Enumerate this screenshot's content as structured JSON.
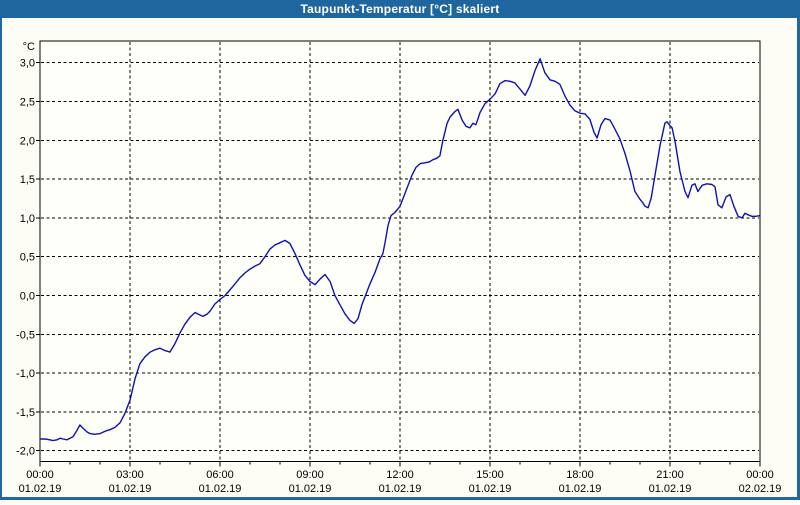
{
  "window": {
    "title": "Taupunkt-Temperatur [°C] skaliert"
  },
  "colors": {
    "titlebar_bg": "#20669e",
    "titlebar_text": "#ffffff",
    "window_border": "#24679f",
    "body_bg": "#fdfdf5",
    "plot_bg": "#fffffa",
    "grid": "#000000",
    "axis": "#000000",
    "line": "#1111b3",
    "label": "#000000"
  },
  "chart_data": {
    "type": "line",
    "title": "Taupunkt-Temperatur [°C] skaliert",
    "xlabel": "",
    "ylabel": "°C",
    "grid": "dashed",
    "legend": "none",
    "ylim": [
      -2.14,
      3.28
    ],
    "y_axis": {
      "unit_label": "°C",
      "min": -2.0,
      "max": 3.0,
      "tick_step": 0.5,
      "ticks": [
        {
          "value": 3.0,
          "label": "3,0"
        },
        {
          "value": 2.5,
          "label": "2,5"
        },
        {
          "value": 2.0,
          "label": "2,0"
        },
        {
          "value": 1.5,
          "label": "1,5"
        },
        {
          "value": 1.0,
          "label": "1,0"
        },
        {
          "value": 0.5,
          "label": "0,5"
        },
        {
          "value": 0.0,
          "label": "0,0"
        },
        {
          "value": -0.5,
          "label": "-0,5"
        },
        {
          "value": -1.0,
          "label": "-1,0"
        },
        {
          "value": -1.5,
          "label": "-1,5"
        },
        {
          "value": -2.0,
          "label": "-2,0"
        }
      ]
    },
    "x_axis": {
      "range_hours": [
        0,
        24
      ],
      "major_tick_hours": 3,
      "minor_tick_hours": 1,
      "ticks": [
        {
          "hour": 0,
          "time": "00:00",
          "date": "01.02.19"
        },
        {
          "hour": 3,
          "time": "03:00",
          "date": "01.02.19"
        },
        {
          "hour": 6,
          "time": "06:00",
          "date": "01.02.19"
        },
        {
          "hour": 9,
          "time": "09:00",
          "date": "01.02.19"
        },
        {
          "hour": 12,
          "time": "12:00",
          "date": "01.02.19"
        },
        {
          "hour": 15,
          "time": "15:00",
          "date": "01.02.19"
        },
        {
          "hour": 18,
          "time": "18:00",
          "date": "01.02.19"
        },
        {
          "hour": 21,
          "time": "21:00",
          "date": "01.02.19"
        },
        {
          "hour": 24,
          "time": "00:00",
          "date": "02.02.19"
        }
      ]
    },
    "series": [
      {
        "name": "Taupunkt-Temperatur skaliert",
        "color": "#1111b3",
        "points": [
          [
            0,
            -1.85
          ],
          [
            0.17,
            -1.85
          ],
          [
            0.33,
            -1.86
          ],
          [
            0.43,
            -1.87
          ],
          [
            0.57,
            -1.86
          ],
          [
            0.67,
            -1.84
          ],
          [
            0.77,
            -1.85
          ],
          [
            0.9,
            -1.86
          ],
          [
            1,
            -1.84
          ],
          [
            1.1,
            -1.82
          ],
          [
            1.23,
            -1.74
          ],
          [
            1.33,
            -1.67
          ],
          [
            1.43,
            -1.71
          ],
          [
            1.57,
            -1.76
          ],
          [
            1.67,
            -1.78
          ],
          [
            1.83,
            -1.79
          ],
          [
            2,
            -1.78
          ],
          [
            2.17,
            -1.75
          ],
          [
            2.33,
            -1.73
          ],
          [
            2.5,
            -1.7
          ],
          [
            2.67,
            -1.64
          ],
          [
            2.83,
            -1.52
          ],
          [
            3,
            -1.35
          ],
          [
            3.17,
            -1.07
          ],
          [
            3.33,
            -0.88
          ],
          [
            3.5,
            -0.79
          ],
          [
            3.67,
            -0.73
          ],
          [
            3.83,
            -0.7
          ],
          [
            4,
            -0.68
          ],
          [
            4.17,
            -0.71
          ],
          [
            4.33,
            -0.73
          ],
          [
            4.5,
            -0.62
          ],
          [
            4.67,
            -0.48
          ],
          [
            4.83,
            -0.37
          ],
          [
            5,
            -0.28
          ],
          [
            5.17,
            -0.22
          ],
          [
            5.27,
            -0.24
          ],
          [
            5.43,
            -0.27
          ],
          [
            5.57,
            -0.24
          ],
          [
            5.67,
            -0.2
          ],
          [
            5.83,
            -0.11
          ],
          [
            6,
            -0.05
          ],
          [
            6.17,
            0
          ],
          [
            6.33,
            0.07
          ],
          [
            6.5,
            0.15
          ],
          [
            6.67,
            0.23
          ],
          [
            6.83,
            0.29
          ],
          [
            7,
            0.34
          ],
          [
            7.17,
            0.38
          ],
          [
            7.33,
            0.41
          ],
          [
            7.5,
            0.5
          ],
          [
            7.67,
            0.6
          ],
          [
            7.83,
            0.65
          ],
          [
            8,
            0.68
          ],
          [
            8.17,
            0.71
          ],
          [
            8.33,
            0.67
          ],
          [
            8.5,
            0.54
          ],
          [
            8.67,
            0.39
          ],
          [
            8.83,
            0.26
          ],
          [
            9,
            0.18
          ],
          [
            9.17,
            0.14
          ],
          [
            9.33,
            0.21
          ],
          [
            9.5,
            0.27
          ],
          [
            9.67,
            0.18
          ],
          [
            9.83,
            0
          ],
          [
            10,
            -0.12
          ],
          [
            10.17,
            -0.24
          ],
          [
            10.33,
            -0.32
          ],
          [
            10.47,
            -0.36
          ],
          [
            10.6,
            -0.3
          ],
          [
            10.73,
            -0.12
          ],
          [
            10.87,
            0.02
          ],
          [
            11,
            0.15
          ],
          [
            11.17,
            0.3
          ],
          [
            11.33,
            0.47
          ],
          [
            11.43,
            0.54
          ],
          [
            11.5,
            0.68
          ],
          [
            11.6,
            0.9
          ],
          [
            11.7,
            1.03
          ],
          [
            11.83,
            1.07
          ],
          [
            12,
            1.15
          ],
          [
            12.13,
            1.28
          ],
          [
            12.27,
            1.42
          ],
          [
            12.4,
            1.55
          ],
          [
            12.53,
            1.65
          ],
          [
            12.67,
            1.7
          ],
          [
            12.83,
            1.71
          ],
          [
            12.97,
            1.72
          ],
          [
            13.1,
            1.75
          ],
          [
            13.23,
            1.77
          ],
          [
            13.33,
            1.8
          ],
          [
            13.43,
            2
          ],
          [
            13.57,
            2.22
          ],
          [
            13.67,
            2.3
          ],
          [
            13.83,
            2.37
          ],
          [
            13.93,
            2.4
          ],
          [
            14.07,
            2.26
          ],
          [
            14.2,
            2.18
          ],
          [
            14.33,
            2.16
          ],
          [
            14.43,
            2.22
          ],
          [
            14.53,
            2.2
          ],
          [
            14.67,
            2.36
          ],
          [
            14.83,
            2.47
          ],
          [
            15,
            2.53
          ],
          [
            15.17,
            2.6
          ],
          [
            15.33,
            2.73
          ],
          [
            15.5,
            2.77
          ],
          [
            15.67,
            2.76
          ],
          [
            15.83,
            2.74
          ],
          [
            16,
            2.66
          ],
          [
            16.17,
            2.58
          ],
          [
            16.33,
            2.7
          ],
          [
            16.5,
            2.9
          ],
          [
            16.67,
            3.05
          ],
          [
            16.83,
            2.87
          ],
          [
            17,
            2.78
          ],
          [
            17.17,
            2.76
          ],
          [
            17.33,
            2.72
          ],
          [
            17.5,
            2.57
          ],
          [
            17.67,
            2.45
          ],
          [
            17.83,
            2.38
          ],
          [
            18,
            2.35
          ],
          [
            18.17,
            2.34
          ],
          [
            18.33,
            2.27
          ],
          [
            18.47,
            2.1
          ],
          [
            18.57,
            2.03
          ],
          [
            18.7,
            2.2
          ],
          [
            18.83,
            2.28
          ],
          [
            19,
            2.26
          ],
          [
            19.17,
            2.14
          ],
          [
            19.33,
            2.02
          ],
          [
            19.5,
            1.83
          ],
          [
            19.67,
            1.6
          ],
          [
            19.83,
            1.34
          ],
          [
            20,
            1.24
          ],
          [
            20.1,
            1.19
          ],
          [
            20.17,
            1.15
          ],
          [
            20.27,
            1.13
          ],
          [
            20.37,
            1.25
          ],
          [
            20.5,
            1.55
          ],
          [
            20.67,
            1.94
          ],
          [
            20.83,
            2.22
          ],
          [
            20.9,
            2.24
          ],
          [
            21,
            2.19
          ],
          [
            21.07,
            2.16
          ],
          [
            21.17,
            1.98
          ],
          [
            21.33,
            1.6
          ],
          [
            21.5,
            1.34
          ],
          [
            21.6,
            1.26
          ],
          [
            21.73,
            1.42
          ],
          [
            21.83,
            1.44
          ],
          [
            21.93,
            1.34
          ],
          [
            22.07,
            1.42
          ],
          [
            22.23,
            1.44
          ],
          [
            22.4,
            1.43
          ],
          [
            22.5,
            1.4
          ],
          [
            22.6,
            1.17
          ],
          [
            22.73,
            1.13
          ],
          [
            22.87,
            1.27
          ],
          [
            23,
            1.3
          ],
          [
            23.13,
            1.15
          ],
          [
            23.27,
            1.02
          ],
          [
            23.4,
            1
          ],
          [
            23.5,
            1.06
          ],
          [
            23.6,
            1.04
          ],
          [
            23.73,
            1.02
          ],
          [
            23.87,
            1.02
          ],
          [
            24,
            1.03
          ]
        ]
      }
    ]
  }
}
